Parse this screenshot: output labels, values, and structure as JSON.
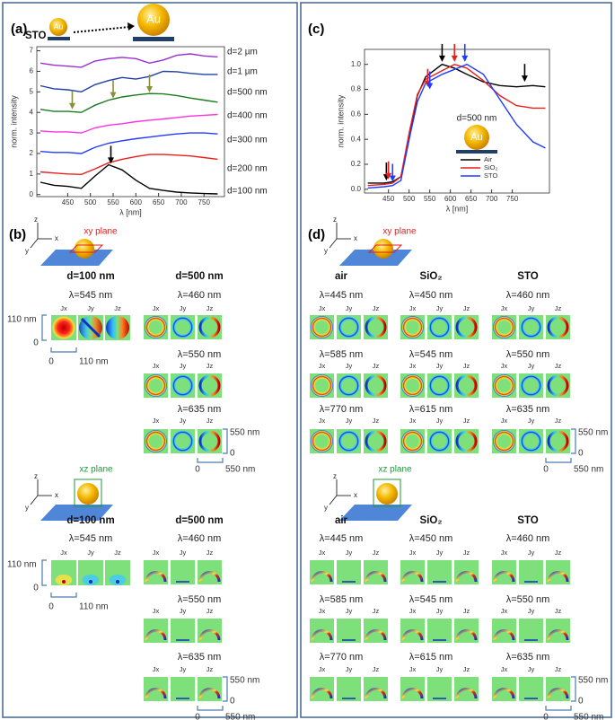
{
  "panel_labels": [
    "(a)",
    "(b)",
    "(c)",
    "(d)"
  ],
  "schematic": {
    "substrate": "STO",
    "particle": "Au"
  },
  "chart_data": [
    {
      "type": "line",
      "x": [
        390,
        420,
        450,
        480,
        510,
        540,
        570,
        600,
        630,
        660,
        690,
        720,
        750,
        780
      ],
      "xlim": [
        382,
        795
      ],
      "ylim": [
        -0.1,
        7.2
      ],
      "xticks": [
        450,
        500,
        550,
        600,
        650,
        700,
        750
      ],
      "yticks": [
        0,
        1,
        2,
        3,
        4,
        5,
        6,
        7
      ],
      "xlabel": "λ [nm]",
      "ylabel": "norm. intensity",
      "series": [
        {
          "name": "d=100 nm",
          "color": "#000000",
          "values": [
            0.6,
            0.45,
            0.4,
            0.3,
            0.9,
            1.45,
            1.2,
            0.7,
            0.3,
            0.2,
            0.12,
            0.08,
            0.05,
            0.03
          ]
        },
        {
          "name": "d=200 nm",
          "color": "#e8201c",
          "values": [
            1.1,
            1.05,
            1.0,
            0.98,
            1.25,
            1.55,
            1.72,
            1.85,
            1.95,
            1.95,
            1.92,
            1.88,
            1.8,
            1.72
          ]
        },
        {
          "name": "d=300 nm",
          "color": "#1f3cff",
          "values": [
            2.1,
            2.05,
            2.05,
            2.0,
            2.3,
            2.5,
            2.62,
            2.72,
            2.8,
            2.88,
            2.95,
            3.0,
            3.0,
            2.95
          ]
        },
        {
          "name": "d=400 nm",
          "color": "#ff33dd",
          "values": [
            3.1,
            3.05,
            3.05,
            3.0,
            3.25,
            3.38,
            3.45,
            3.55,
            3.62,
            3.68,
            3.75,
            3.82,
            3.86,
            3.9
          ]
        },
        {
          "name": "d=500 nm",
          "color": "#1d7a1d",
          "values": [
            4.15,
            4.05,
            4.05,
            4.0,
            4.35,
            4.6,
            4.75,
            4.85,
            4.92,
            4.9,
            4.82,
            4.7,
            4.6,
            4.5
          ]
        },
        {
          "name": "d=1 µm",
          "color": "#2040a8",
          "values": [
            5.3,
            5.15,
            5.1,
            5.0,
            5.35,
            5.55,
            5.7,
            5.62,
            5.75,
            6.0,
            5.98,
            5.9,
            5.85,
            5.85
          ]
        },
        {
          "name": "d=2 µm",
          "color": "#9a2fd0",
          "values": [
            6.4,
            6.3,
            6.25,
            6.2,
            6.5,
            6.62,
            6.68,
            6.62,
            6.4,
            6.55,
            6.78,
            6.85,
            6.75,
            6.7
          ]
        }
      ],
      "arrows": [
        {
          "x": 545,
          "y": 1.5,
          "color": "#000000"
        },
        {
          "x": 460,
          "y": 4.15,
          "color": "#8a8f3a"
        },
        {
          "x": 550,
          "y": 4.68,
          "color": "#8a8f3a"
        },
        {
          "x": 630,
          "y": 4.97,
          "color": "#8a8f3a"
        }
      ]
    },
    {
      "type": "line",
      "x": [
        400,
        440,
        460,
        480,
        500,
        520,
        540,
        580,
        610,
        640,
        680,
        720,
        760,
        800,
        830
      ],
      "xlim": [
        392,
        840
      ],
      "ylim": [
        -0.03,
        1.12
      ],
      "xticks": [
        450,
        500,
        550,
        600,
        650,
        700,
        750
      ],
      "yticks": [
        {
          "value": 0,
          "label": "0.0"
        },
        0.2,
        0.4,
        0.6,
        0.8,
        {
          "value": 1,
          "label": "1.0"
        }
      ],
      "xlabel": "λ [nm]",
      "ylabel": "norm. intensity",
      "annotation": "d=500 nm",
      "series": [
        {
          "name": "Air",
          "color": "#000000",
          "values": [
            0.05,
            0.05,
            0.06,
            0.1,
            0.4,
            0.75,
            0.9,
            1.0,
            0.97,
            0.92,
            0.86,
            0.83,
            0.82,
            0.83,
            0.82
          ]
        },
        {
          "name": "SiO₂",
          "color": "#e8201c",
          "values": [
            0.03,
            0.04,
            0.05,
            0.1,
            0.45,
            0.76,
            0.88,
            0.95,
            1.0,
            0.97,
            0.87,
            0.75,
            0.67,
            0.65,
            0.65
          ]
        },
        {
          "name": "STO",
          "color": "#1f3cff",
          "values": [
            0.01,
            0.02,
            0.03,
            0.07,
            0.4,
            0.7,
            0.85,
            0.92,
            0.96,
            1.0,
            0.92,
            0.72,
            0.52,
            0.38,
            0.33
          ]
        }
      ],
      "arrows": [
        {
          "x": 445,
          "y": 0.07,
          "color": "#000000"
        },
        {
          "x": 450,
          "y": 0.08,
          "color": "#e8201c"
        },
        {
          "x": 460,
          "y": 0.06,
          "color": "#1f3cff"
        },
        {
          "x": 545,
          "y": 0.82,
          "color": "#e8201c"
        },
        {
          "x": 550,
          "y": 0.8,
          "color": "#1f3cff"
        },
        {
          "x": 580,
          "y": 1.02,
          "color": "#000000"
        },
        {
          "x": 610,
          "y": 1.02,
          "color": "#e8201c"
        },
        {
          "x": 635,
          "y": 1.02,
          "color": "#1f3cff"
        },
        {
          "x": 780,
          "y": 0.86,
          "color": "#000000"
        }
      ]
    }
  ],
  "axes_icon": [
    "z",
    "x",
    "y"
  ],
  "planes": {
    "xy": "xy plane",
    "xz": "xz plane"
  },
  "components": [
    "Jx",
    "Jy",
    "Jz"
  ],
  "scale": {
    "small": "110 nm",
    "large": "550 nm",
    "origin": "0"
  },
  "left": {
    "columns": [
      {
        "header": "d=100 nm",
        "wavelengths": [
          "λ=545 nm"
        ]
      },
      {
        "header": "d=500 nm",
        "wavelengths": [
          "λ=460 nm",
          "λ=550 nm",
          "λ=635 nm"
        ]
      }
    ]
  },
  "right": {
    "columns": [
      {
        "header": "air",
        "wavelengths": [
          "λ=445 nm",
          "λ=585 nm",
          "λ=770 nm"
        ]
      },
      {
        "header": "SiO₂",
        "wavelengths": [
          "λ=450 nm",
          "λ=545 nm",
          "λ=615 nm"
        ]
      },
      {
        "header": "STO",
        "wavelengths": [
          "λ=460 nm",
          "λ=550 nm",
          "λ=635 nm"
        ]
      }
    ]
  }
}
